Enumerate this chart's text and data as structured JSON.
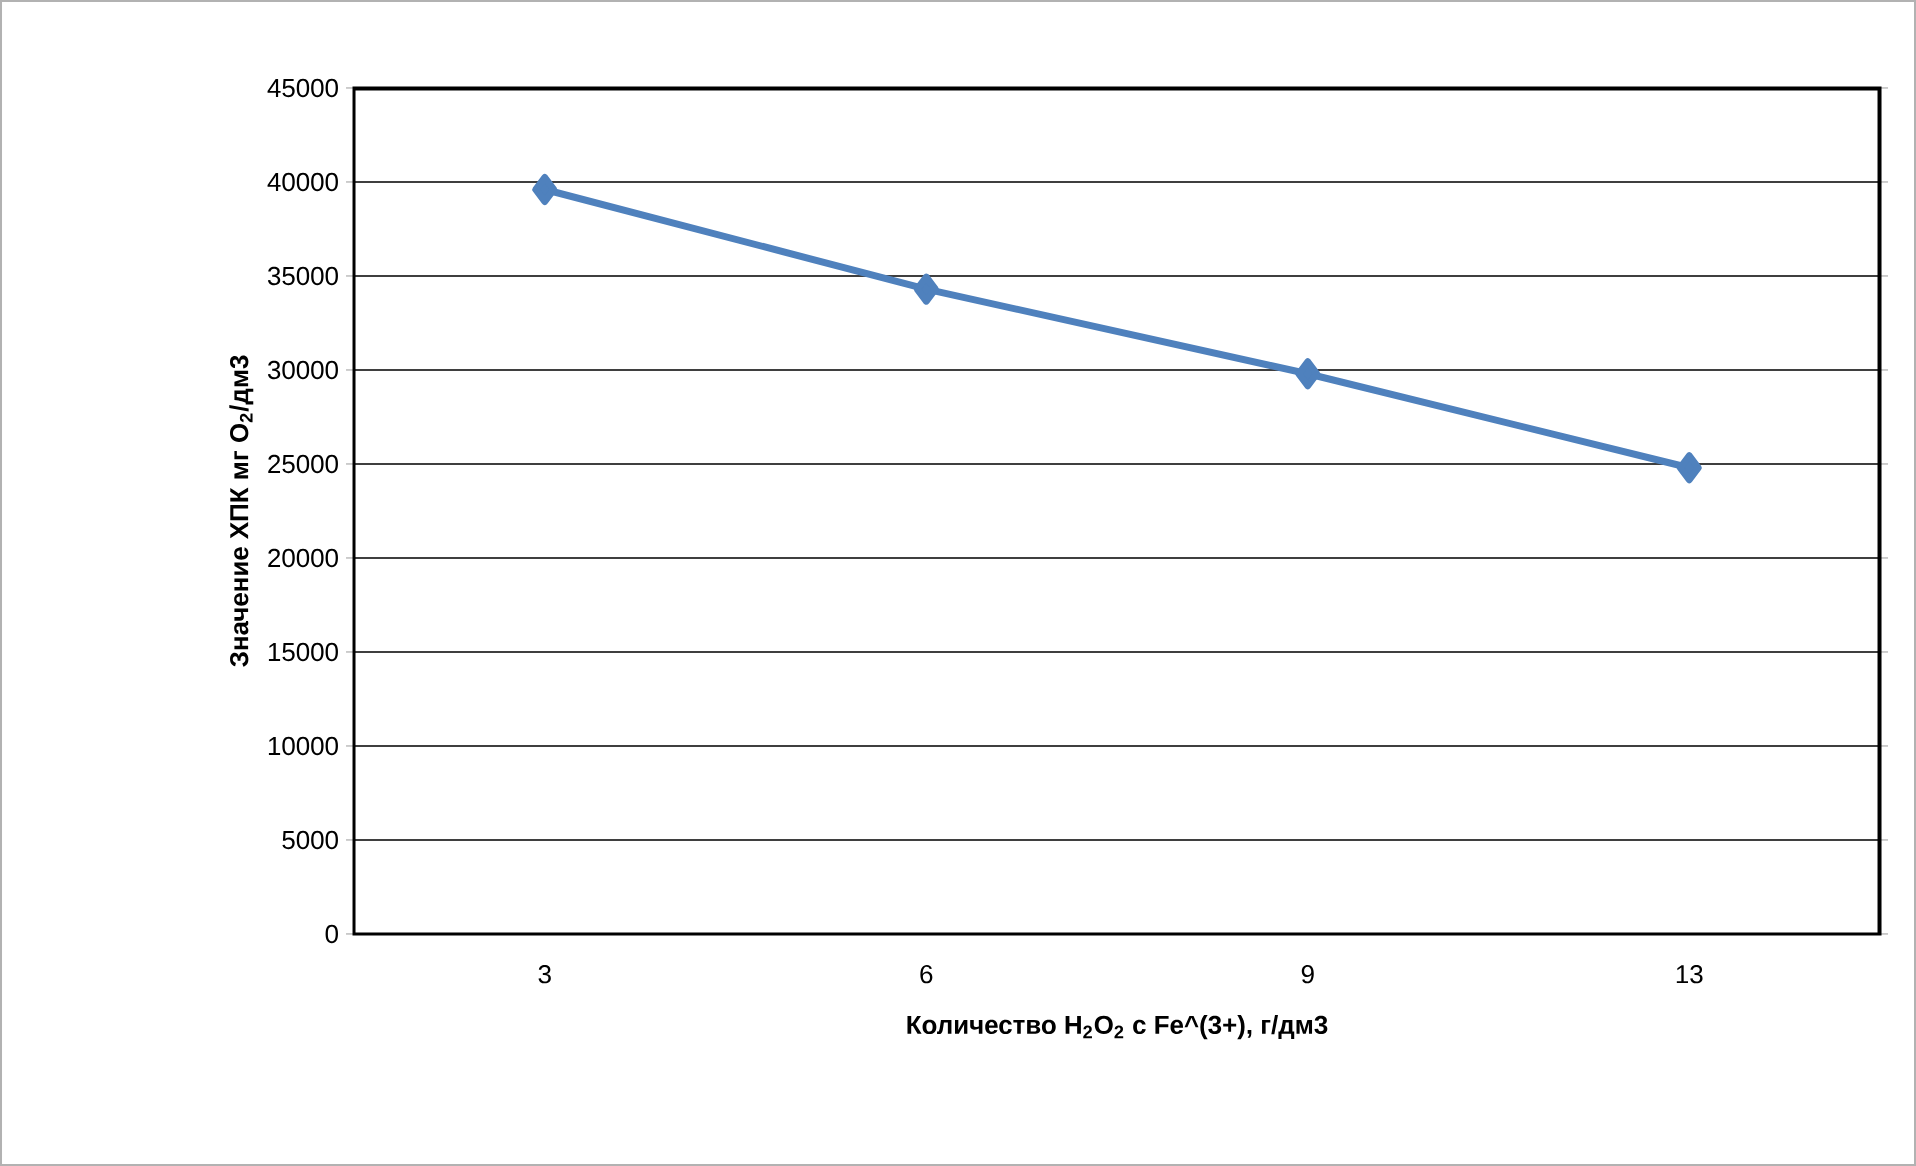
{
  "chart_data": {
    "type": "line",
    "categories": [
      "3",
      "6",
      "9",
      "13"
    ],
    "series": [
      {
        "color": "#4f81bd",
        "values": [
          39600,
          34300,
          29800,
          24800
        ]
      }
    ],
    "xlabel": "Количество H$_{2}$O$_{2}$ с Fe^(3+), г/дм3",
    "ylabel": "Значение ХПК мг O$_{2}$/дм3",
    "ylim": [
      0,
      45000
    ],
    "yticks": [
      0,
      5000,
      10000,
      15000,
      20000,
      25000,
      30000,
      35000,
      40000,
      45000
    ],
    "grid": "y",
    "marker": "diamond",
    "line_style": "solid"
  }
}
